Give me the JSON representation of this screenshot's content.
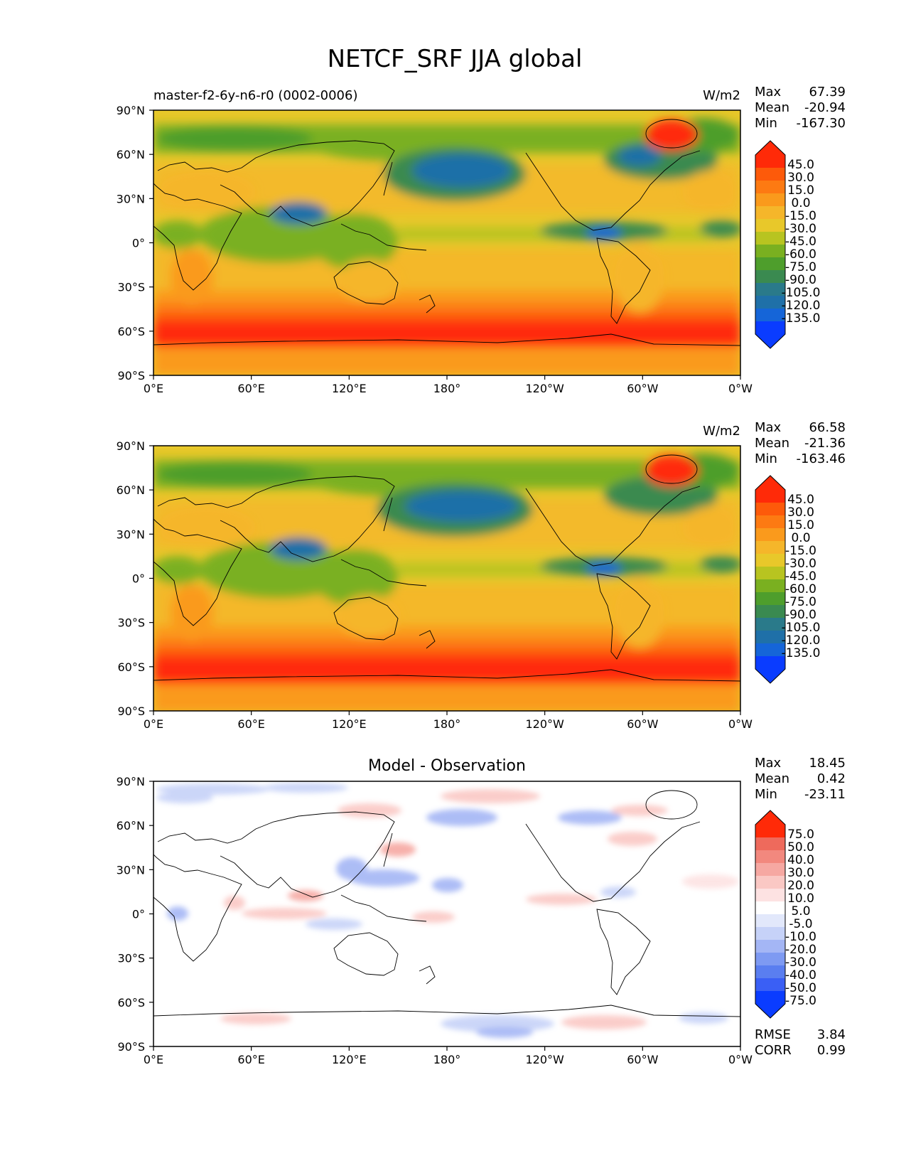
{
  "figure_title": "NETCF_SRF JJA global",
  "x_ticks": [
    "0°E",
    "60°E",
    "120°E",
    "180°",
    "120°W",
    "60°W",
    "0°W"
  ],
  "y_ticks": [
    "90°N",
    "60°N",
    "30°N",
    "0°",
    "30°S",
    "60°S",
    "90°S"
  ],
  "stat_labels": {
    "max": "Max",
    "mean": "Mean",
    "min": "Min",
    "rmse": "RMSE",
    "corr": "CORR"
  },
  "colors": {
    "field_scale": [
      "#0a3cff",
      "#1565d8",
      "#1f70a8",
      "#2a7a8a",
      "#3a8a50",
      "#4e9e2c",
      "#7ab020",
      "#b8c420",
      "#e8c82a",
      "#f5b62a",
      "#fa9a1c",
      "#fd7a12",
      "#fd5a0a",
      "#ff2a08"
    ],
    "diff_scale": [
      "#0a3cff",
      "#3a5ff5",
      "#5a7ef0",
      "#7e9af2",
      "#a4b6f5",
      "#c6d2f8",
      "#e2e8fb",
      "#ffffff",
      "#fde2e2",
      "#fac8c4",
      "#f6a8a2",
      "#f2887e",
      "#ee6a5c",
      "#ff2a08"
    ]
  },
  "panels": [
    {
      "id": "model",
      "title_left": "master-f2-6y-n6-r0 (0002-0006)",
      "title_center": "",
      "units": "W/m2",
      "stats": {
        "max": "67.39",
        "mean": "-20.94",
        "min": "-167.30"
      },
      "colorbar_ticks": [
        "45.0",
        "30.0",
        "15.0",
        "0.0",
        "-15.0",
        "-30.0",
        "-45.0",
        "-60.0",
        "-75.0",
        "-90.0",
        "-105.0",
        "-120.0",
        "-135.0"
      ]
    },
    {
      "id": "observation",
      "title_left": "",
      "title_center": "",
      "units": "W/m2",
      "stats": {
        "max": "66.58",
        "mean": "-21.36",
        "min": "-163.46"
      },
      "colorbar_ticks": [
        "45.0",
        "30.0",
        "15.0",
        "0.0",
        "-15.0",
        "-30.0",
        "-45.0",
        "-60.0",
        "-75.0",
        "-90.0",
        "-105.0",
        "-120.0",
        "-135.0"
      ]
    },
    {
      "id": "difference",
      "title_left": "",
      "title_center": "Model - Observation",
      "units": "",
      "stats": {
        "max": "18.45",
        "mean": "0.42",
        "min": "-23.11"
      },
      "colorbar_ticks": [
        "75.0",
        "50.0",
        "40.0",
        "30.0",
        "20.0",
        "10.0",
        "5.0",
        "-5.0",
        "-10.0",
        "-20.0",
        "-30.0",
        "-40.0",
        "-50.0",
        "-75.0"
      ],
      "metrics": {
        "rmse": "3.84",
        "corr": "0.99"
      }
    }
  ]
}
